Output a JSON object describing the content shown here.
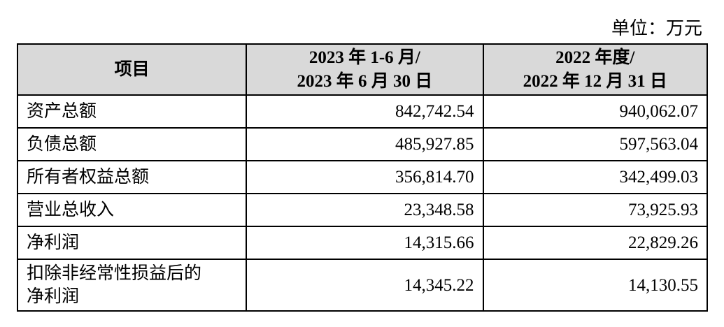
{
  "unit": "单位：万元",
  "table": {
    "header": [
      [
        "项目"
      ],
      [
        "2023 年 1-6 月/",
        "2023 年 6 月 30 日"
      ],
      [
        "2022 年度/",
        "2022 年 12 月 31 日"
      ]
    ],
    "rows": [
      [
        [
          "资产总额"
        ],
        "842,742.54",
        "940,062.07"
      ],
      [
        [
          "负债总额"
        ],
        "485,927.85",
        "597,563.04"
      ],
      [
        [
          "所有者权益总额"
        ],
        "356,814.70",
        "342,499.03"
      ],
      [
        [
          "营业总收入"
        ],
        "23,348.58",
        "73,925.93"
      ],
      [
        [
          "净利润"
        ],
        "14,315.66",
        "22,829.26"
      ],
      [
        [
          "扣除非经常性损益后的",
          "净利润"
        ],
        "14,345.22",
        "14,130.55"
      ]
    ]
  }
}
